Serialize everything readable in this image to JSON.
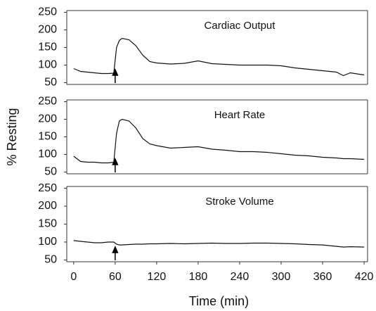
{
  "chart_data": [
    {
      "type": "line",
      "title": "Cardiac Output",
      "color": "#111111",
      "x": [
        0,
        10,
        20,
        30,
        40,
        50,
        58,
        62,
        66,
        70,
        80,
        90,
        100,
        110,
        120,
        140,
        160,
        180,
        200,
        220,
        240,
        260,
        280,
        300,
        320,
        340,
        360,
        380,
        390,
        400,
        420
      ],
      "values": [
        90,
        82,
        80,
        78,
        76,
        76,
        77,
        150,
        170,
        176,
        172,
        155,
        128,
        110,
        106,
        103,
        105,
        112,
        104,
        102,
        100,
        100,
        100,
        98,
        92,
        88,
        84,
        80,
        70,
        78,
        72
      ],
      "xlim": [
        -10,
        425
      ],
      "ylim": [
        45,
        255
      ],
      "yticks": [
        50,
        100,
        150,
        200,
        250
      ],
      "annotation_x": 60
    },
    {
      "type": "line",
      "title": "Heart Rate",
      "color": "#111111",
      "y_label": "% Resting",
      "x": [
        0,
        10,
        20,
        30,
        40,
        50,
        58,
        62,
        66,
        70,
        80,
        90,
        100,
        110,
        120,
        140,
        160,
        180,
        200,
        220,
        240,
        260,
        280,
        300,
        320,
        340,
        360,
        380,
        390,
        400,
        420
      ],
      "values": [
        95,
        80,
        78,
        78,
        76,
        76,
        78,
        160,
        195,
        200,
        195,
        175,
        145,
        130,
        125,
        118,
        120,
        122,
        115,
        112,
        108,
        108,
        106,
        102,
        98,
        96,
        92,
        90,
        88,
        88,
        86
      ],
      "xlim": [
        -10,
        425
      ],
      "ylim": [
        45,
        255
      ],
      "yticks": [
        50,
        100,
        150,
        200,
        250
      ],
      "annotation_x": 60
    },
    {
      "type": "line",
      "title": "Stroke Volume",
      "color": "#111111",
      "x_label": "Time (min)",
      "x": [
        0,
        10,
        20,
        30,
        40,
        50,
        58,
        62,
        66,
        70,
        80,
        90,
        100,
        110,
        120,
        140,
        160,
        180,
        200,
        220,
        240,
        260,
        280,
        300,
        320,
        340,
        360,
        380,
        390,
        400,
        420
      ],
      "values": [
        104,
        102,
        100,
        98,
        98,
        100,
        100,
        94,
        92,
        92,
        93,
        94,
        94,
        95,
        95,
        96,
        95,
        96,
        97,
        96,
        96,
        97,
        97,
        96,
        95,
        93,
        92,
        88,
        86,
        87,
        86
      ],
      "xlim": [
        -10,
        425
      ],
      "ylim": [
        45,
        255
      ],
      "yticks": [
        50,
        100,
        150,
        200,
        250
      ],
      "xticks": [
        0,
        60,
        120,
        180,
        240,
        300,
        360,
        420
      ],
      "annotation_x": 60
    }
  ]
}
